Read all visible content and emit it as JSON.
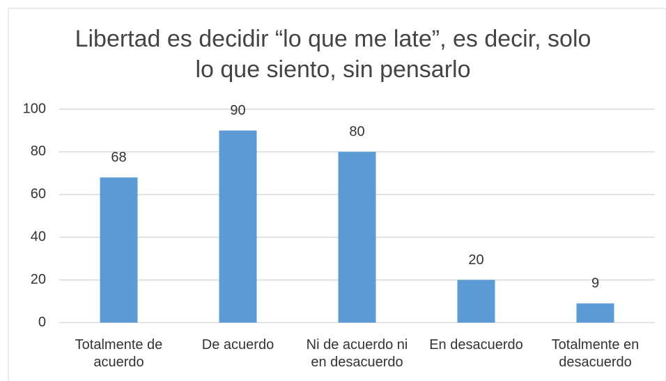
{
  "chart_data": {
    "type": "bar",
    "title": "Libertad es decidir “lo que me late”, es decir, solo lo que siento, sin pensarlo",
    "categories": [
      "Totalmente de acuerdo",
      "De acuerdo",
      "Ni de acuerdo ni en desacuerdo",
      "En desacuerdo",
      "Totalmente en desacuerdo"
    ],
    "values": [
      68,
      90,
      80,
      20,
      9
    ],
    "color": "#5b9bd5",
    "ylim": [
      0,
      100
    ],
    "yticks": [
      0,
      20,
      40,
      60,
      80,
      100
    ],
    "grid": true
  }
}
